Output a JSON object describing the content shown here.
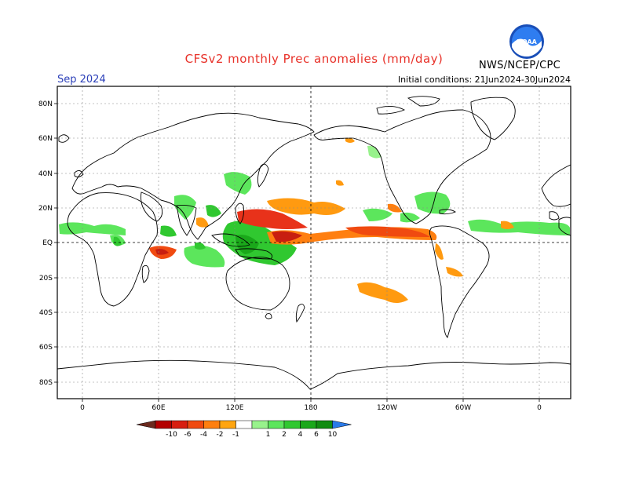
{
  "header": {
    "title": "CFSv2 monthly Prec anomalies (mm/day)",
    "month": "Sep 2024",
    "initial_conditions": "Initial conditions: 21Jun2024-30Jun2024",
    "agency": "NWS/NCEP/CPC",
    "logo_text": "NOAA"
  },
  "axes": {
    "x_ticks": [
      "0",
      "60E",
      "120E",
      "180",
      "120W",
      "60W",
      "0"
    ],
    "y_ticks": [
      "80N",
      "60N",
      "40N",
      "20N",
      "EQ",
      "20S",
      "40S",
      "60S",
      "80S"
    ]
  },
  "colorbar": {
    "labels": [
      "-10",
      "-6",
      "-4",
      "-2",
      "-1",
      "1",
      "2",
      "4",
      "6",
      "10"
    ],
    "colors": [
      "#6b2a1e",
      "#b30000",
      "#d81e10",
      "#f04a10",
      "#ff7f10",
      "#ffa510",
      "#ffffff",
      "#98f28c",
      "#5ce65c",
      "#30c830",
      "#1aa81a",
      "#118c11",
      "#2a7ae8"
    ]
  },
  "colors": {
    "title": "#e8322a",
    "month": "#2b3fb8",
    "wet": "#30c830",
    "dry_strong": "#e03010",
    "dry_mod": "#ff8a10"
  }
}
